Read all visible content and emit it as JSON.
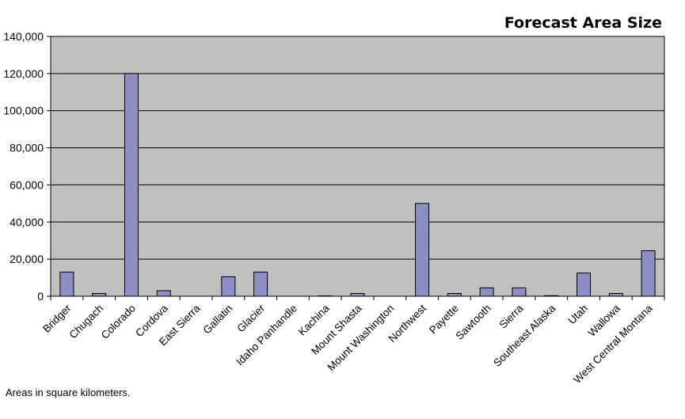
{
  "chart_data": {
    "type": "bar",
    "title": "Forecast Area Size",
    "note": "Areas in square kilometers.",
    "xlabel": "",
    "ylabel": "",
    "ylim": [
      0,
      140000
    ],
    "yticks": [
      0,
      20000,
      40000,
      60000,
      80000,
      100000,
      120000,
      140000
    ],
    "ytick_labels": [
      "0",
      "20,000",
      "40,000",
      "60,000",
      "80,000",
      "100,000",
      "120,000",
      "140,000"
    ],
    "grid": true,
    "legend": "none",
    "categories": [
      "Bridger",
      "Chugach",
      "Colorado",
      "Cordova",
      "East Sierra",
      "Gallatin",
      "Glacier",
      "Idaho Panhandle",
      "Kachina",
      "Mount Shasta",
      "Mount Washington",
      "Northwest",
      "Payette",
      "Sawtooth",
      "Sierra",
      "Southeast Alaska",
      "Utah",
      "Wallowa",
      "West Central Montana"
    ],
    "values": [
      13000,
      1500,
      120000,
      3000,
      0,
      10500,
      13000,
      0,
      200,
      1500,
      0,
      50000,
      1500,
      4500,
      4500,
      300,
      12500,
      1500,
      24500
    ],
    "colors": {
      "plot_bg": "#c0c0c0",
      "bar_fill": "#8c8fc6",
      "bar_stroke": "#000000",
      "grid": "#000000"
    }
  }
}
